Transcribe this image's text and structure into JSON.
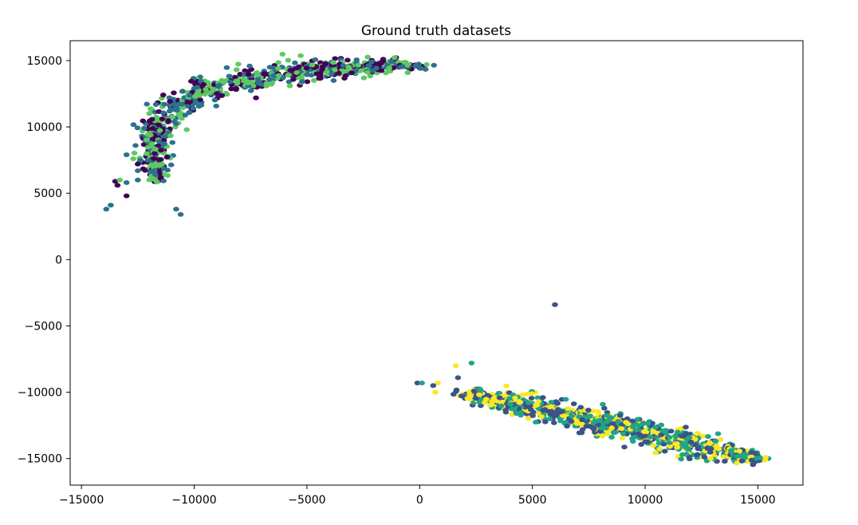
{
  "chart_data": {
    "type": "scatter",
    "title": "Ground truth datasets",
    "xlabel": "",
    "ylabel": "",
    "xlim": [
      -15500,
      17000
    ],
    "ylim": [
      -17000,
      16500
    ],
    "x_ticks": [
      -15000,
      -10000,
      -5000,
      0,
      5000,
      10000,
      15000
    ],
    "x_tick_labels": [
      "−15000",
      "−10000",
      "−5000",
      "0",
      "5000",
      "10000",
      "15000"
    ],
    "y_ticks": [
      15000,
      10000,
      5000,
      0,
      -5000,
      -10000,
      -15000
    ],
    "y_tick_labels": [
      "15000",
      "10000",
      "5000",
      "0",
      "−5000",
      "−10000",
      "−15000"
    ],
    "grid": false,
    "legend": "none",
    "colors": {
      "dark_purple": "#440154",
      "purple_blue": "#3b528b",
      "teal": "#2c728e",
      "green_teal": "#21a585",
      "light_green": "#5ec962",
      "yellow": "#fde725"
    },
    "clusters": [
      {
        "name": "upper-left arc",
        "colors": [
          "#440154",
          "#2c728e",
          "#5ec962"
        ],
        "curve": [
          [
            -11500,
            5500
          ],
          [
            -11700,
            7000
          ],
          [
            -11800,
            9000
          ],
          [
            -11500,
            10500
          ],
          [
            -10500,
            12000
          ],
          [
            -9000,
            13000
          ],
          [
            -7000,
            13800
          ],
          [
            -5000,
            14300
          ],
          [
            -3000,
            14500
          ],
          [
            -1000,
            14600
          ],
          [
            500,
            14600
          ]
        ],
        "point_count": 750
      },
      {
        "name": "lower-right band",
        "colors": [
          "#3b528b",
          "#21a585",
          "#fde725"
        ],
        "curve": [
          [
            1500,
            -10000
          ],
          [
            4000,
            -10800
          ],
          [
            7000,
            -11800
          ],
          [
            10000,
            -13000
          ],
          [
            13000,
            -14300
          ],
          [
            15500,
            -15200
          ]
        ],
        "point_count": 900
      }
    ],
    "outliers": [
      {
        "x": -13900,
        "y": 3800,
        "color": "#2c728e"
      },
      {
        "x": -13700,
        "y": 4100,
        "color": "#2c728e"
      },
      {
        "x": -13000,
        "y": 4800,
        "color": "#440154"
      },
      {
        "x": -13400,
        "y": 5600,
        "color": "#440154"
      },
      {
        "x": -13500,
        "y": 5900,
        "color": "#440154"
      },
      {
        "x": -13300,
        "y": 6000,
        "color": "#5ec962"
      },
      {
        "x": -13000,
        "y": 5800,
        "color": "#2c728e"
      },
      {
        "x": -12500,
        "y": 6000,
        "color": "#2c728e"
      },
      {
        "x": -12500,
        "y": 6700,
        "color": "#2c728e"
      },
      {
        "x": -12500,
        "y": 7200,
        "color": "#440154"
      },
      {
        "x": -12700,
        "y": 7600,
        "color": "#5ec962"
      },
      {
        "x": -13000,
        "y": 7900,
        "color": "#2c728e"
      },
      {
        "x": -12600,
        "y": 8600,
        "color": "#2c728e"
      },
      {
        "x": -10800,
        "y": 3800,
        "color": "#2c728e"
      },
      {
        "x": -10600,
        "y": 3400,
        "color": "#2c728e"
      },
      {
        "x": 6000,
        "y": -3400,
        "color": "#3b528b"
      },
      {
        "x": 2300,
        "y": -7800,
        "color": "#21a585"
      },
      {
        "x": 1600,
        "y": -8000,
        "color": "#fde725"
      },
      {
        "x": 1700,
        "y": -8900,
        "color": "#3b528b"
      },
      {
        "x": -100,
        "y": -9300,
        "color": "#3b528b"
      },
      {
        "x": 100,
        "y": -9300,
        "color": "#21a585"
      },
      {
        "x": 800,
        "y": -9300,
        "color": "#fde725"
      },
      {
        "x": 700,
        "y": -10000,
        "color": "#fde725"
      },
      {
        "x": 600,
        "y": -9500,
        "color": "#3b528b"
      }
    ]
  }
}
